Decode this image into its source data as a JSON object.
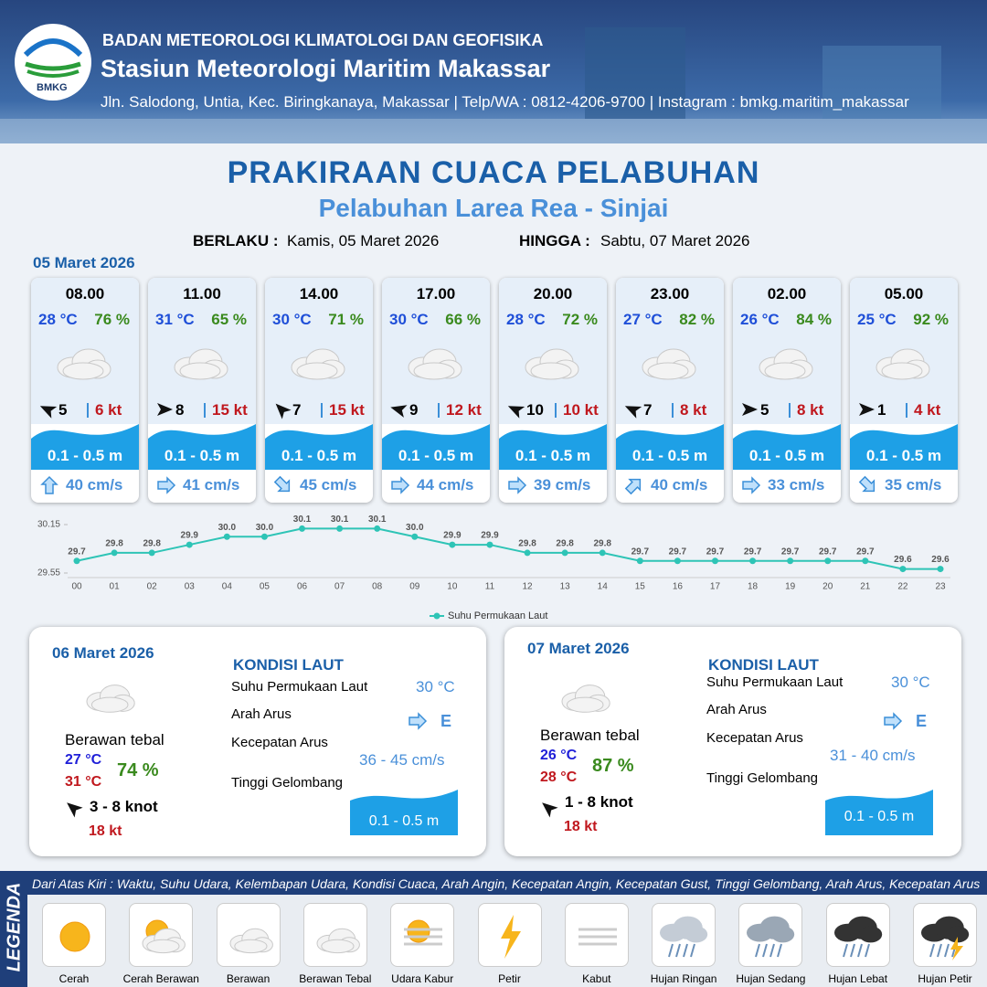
{
  "header": {
    "logo": "BMKG",
    "agency": "BADAN METEOROLOGI KLIMATOLOGI DAN GEOFISIKA",
    "station": "Stasiun Meteorologi Maritim Makassar",
    "address": "Jln. Salodong, Untia, Kec. Biringkanaya, Makassar | Telp/WA : 0812-4206-9700 | Instagram : bmkg.maritim_makassar"
  },
  "title": "PRAKIRAAN CUACA PELABUHAN",
  "subtitle": "Pelabuhan Larea Rea - Sinjai",
  "validity": {
    "from_label": "BERLAKU :",
    "from": "Kamis, 05 Maret 2026",
    "to_label": "HINGGA :",
    "to": "Sabtu, 07 Maret 2026"
  },
  "today": {
    "date": "05 Maret 2026",
    "forecasts": [
      {
        "time": "08.00",
        "temperature": "28 °C",
        "humidity": "76 %",
        "wind": "5",
        "gust": "6 kt",
        "wave": "0.1 - 0.5 m",
        "current": "40 cm/s"
      },
      {
        "time": "11.00",
        "temperature": "31 °C",
        "humidity": "65 %",
        "wind": "8",
        "gust": "15 kt",
        "wave": "0.1 - 0.5 m",
        "current": "41 cm/s"
      },
      {
        "time": "14.00",
        "temperature": "30 °C",
        "humidity": "71 %",
        "wind": "7",
        "gust": "15 kt",
        "wave": "0.1 - 0.5 m",
        "current": "45 cm/s"
      },
      {
        "time": "17.00",
        "temperature": "30 °C",
        "humidity": "66 %",
        "wind": "9",
        "gust": "12 kt",
        "wave": "0.1 - 0.5 m",
        "current": "44 cm/s"
      },
      {
        "time": "20.00",
        "temperature": "28 °C",
        "humidity": "72 %",
        "wind": "10",
        "gust": "10 kt",
        "wave": "0.1 - 0.5 m",
        "current": "39 cm/s"
      },
      {
        "time": "23.00",
        "temperature": "27 °C",
        "humidity": "82 %",
        "wind": "7",
        "gust": "8 kt",
        "wave": "0.1 - 0.5 m",
        "current": "40 cm/s"
      },
      {
        "time": "02.00",
        "temperature": "26 °C",
        "humidity": "84 %",
        "wind": "5",
        "gust": "8 kt",
        "wave": "0.1 - 0.5 m",
        "current": "33 cm/s"
      },
      {
        "time": "05.00",
        "temperature": "25 °C",
        "humidity": "92 %",
        "wind": "1",
        "gust": "4 kt",
        "wave": "0.1 - 0.5 m",
        "current": "35 cm/s"
      }
    ]
  },
  "chart_data": {
    "type": "line",
    "categories": [
      "00",
      "01",
      "02",
      "03",
      "04",
      "05",
      "06",
      "07",
      "08",
      "09",
      "10",
      "11",
      "12",
      "13",
      "14",
      "15",
      "16",
      "17",
      "18",
      "19",
      "20",
      "21",
      "22",
      "23"
    ],
    "series": [
      {
        "name": "Suhu Permukaan Laut",
        "color": "#2ec4b6",
        "values": [
          29.7,
          29.8,
          29.8,
          29.9,
          30.0,
          30.0,
          30.1,
          30.1,
          30.1,
          30.0,
          29.9,
          29.9,
          29.8,
          29.8,
          29.8,
          29.7,
          29.7,
          29.7,
          29.7,
          29.7,
          29.7,
          29.7,
          29.6,
          29.6
        ],
        "value_labels": [
          "29.7",
          "29.8",
          "29.8",
          "29.9",
          "30.0",
          "30.0",
          "30.1",
          "30.1",
          "30.1",
          "30.0",
          "29.9",
          "29.9",
          "29.8",
          "29.8",
          "29.8",
          "29.7",
          "29.7",
          "29.7",
          "29.7",
          "29.7",
          "29.7",
          "29.7",
          "29.6",
          "29.6"
        ]
      }
    ],
    "ylim": [
      29.55,
      30.15
    ],
    "yticks": [
      29.55,
      30.15
    ]
  },
  "days": [
    {
      "date": "06 Maret 2026",
      "weather": "Berawan tebal",
      "temp_min": "27 °C",
      "temp_max": "31 °C",
      "humidity": "74 %",
      "wind": "3 - 8 knot",
      "gust": "18 kt",
      "sea_title": "KONDISI LAUT",
      "sst_label": "Suhu Permukaan Laut",
      "sst": "30 °C",
      "current_dir_label": "Arah Arus",
      "current_dir": "E",
      "current_speed_label": "Kecepatan Arus",
      "current_speed": "36 - 45 cm/s",
      "wave_label": "Tinggi Gelombang",
      "wave": "0.1 - 0.5 m"
    },
    {
      "date": "07 Maret 2026",
      "weather": "Berawan tebal",
      "temp_min": "26 °C",
      "temp_max": "28 °C",
      "humidity": "87 %",
      "wind": "1 - 8 knot",
      "gust": "18 kt",
      "sea_title": "KONDISI LAUT",
      "sst_label": "Suhu Permukaan Laut",
      "sst": "30 °C",
      "current_dir_label": "Arah Arus",
      "current_dir": "E",
      "current_speed_label": "Kecepatan Arus",
      "current_speed": "31 - 40 cm/s",
      "wave_label": "Tinggi Gelombang",
      "wave": "0.1 - 0.5 m"
    }
  ],
  "legend": {
    "title": "LEGENDA",
    "description": "Dari Atas Kiri : Waktu, Suhu Udara, Kelembapan Udara, Kondisi Cuaca, Arah Angin, Kecepatan Angin, Kecepatan Gust, Tinggi Gelombang, Arah Arus, Kecepatan Arus",
    "items": [
      "Cerah",
      "Cerah Berawan",
      "Berawan",
      "Berawan Tebal",
      "Udara Kabur",
      "Petir",
      "Kabut",
      "Hujan Ringan",
      "Hujan Sedang",
      "Hujan Lebat",
      "Hujan Petir"
    ]
  }
}
